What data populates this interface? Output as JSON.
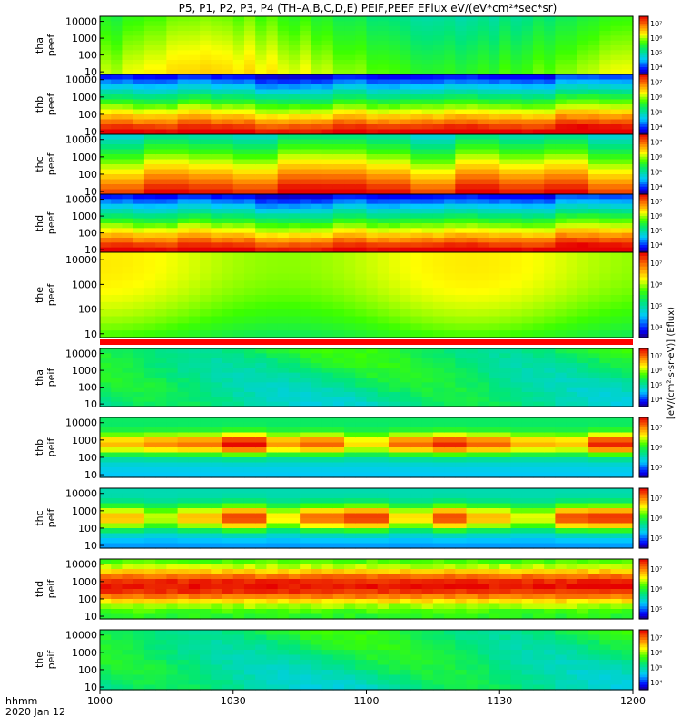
{
  "title": "P5, P1, P2, P3, P4 (TH–A,B,C,D,E) PEIF,PEEF EFlux eV/(eV*cm²*sec*sr)",
  "chart_data": {
    "type": "heatmap",
    "title": "P5, P1, P2, P3, P4 (TH–A,B,C,D,E) PEIF,PEEF EFlux eV/(eV*cm²*sec*sr)",
    "x_ticks": [
      "1000",
      "1030",
      "1100",
      "1130",
      "1200"
    ],
    "x_label_line1": "hhmm",
    "x_label_line2": "2020 Jan 12",
    "x_range_hhmm": [
      "1000",
      "1200"
    ],
    "y_ticks": [
      "10",
      "100",
      "1000",
      "10000"
    ],
    "y_scale": "log",
    "y_range": [
      7,
      20000
    ],
    "colorbar_label": "[eV/(cm²·s·sr·eV)] (Eflux)",
    "colorscale": "rainbow (blue–cyan–green–yellow–red)",
    "panels": [
      {
        "label1": "tha",
        "label2": "peef",
        "cbar_ticks": [
          "10⁴",
          "10⁵",
          "10⁶",
          "10⁷"
        ],
        "pattern": "green-yellow"
      },
      {
        "label1": "thb",
        "label2": "peef",
        "cbar_ticks": [
          "10⁴",
          "10⁵",
          "10⁶",
          "10⁷"
        ],
        "pattern": "red-low-blue-high"
      },
      {
        "label1": "thc",
        "label2": "peef",
        "cbar_ticks": [
          "10⁴",
          "10⁵",
          "10⁶",
          "10⁷"
        ],
        "pattern": "orange-yellow-cyan"
      },
      {
        "label1": "thd",
        "label2": "peef",
        "cbar_ticks": [
          "10⁴",
          "10⁵",
          "10⁶",
          "10⁷"
        ],
        "pattern": "red-low-blue-high"
      },
      {
        "label1": "the",
        "label2": "peef",
        "cbar_ticks": [
          "10⁴",
          "10⁵",
          "10⁶",
          "10⁷"
        ],
        "pattern": "yellow-green"
      },
      {
        "label1": "tha",
        "label2": "peif",
        "cbar_ticks": [
          "10⁴",
          "10⁵",
          "10⁶",
          "10⁷"
        ],
        "pattern": "green-cyan"
      },
      {
        "label1": "thb",
        "label2": "peif",
        "cbar_ticks": [
          "10⁵",
          "10⁶",
          "10⁷"
        ],
        "pattern": "blocks-orange-green"
      },
      {
        "label1": "thc",
        "label2": "peif",
        "cbar_ticks": [
          "10⁵",
          "10⁶",
          "10⁷"
        ],
        "pattern": "blocks-green-yellow"
      },
      {
        "label1": "thd",
        "label2": "peif",
        "cbar_ticks": [
          "10⁵",
          "10⁶",
          "10⁷"
        ],
        "pattern": "red-orange-band"
      },
      {
        "label1": "the",
        "label2": "peif",
        "cbar_ticks": [
          "10⁴",
          "10⁵",
          "10⁶",
          "10⁷"
        ],
        "pattern": "green-cyan"
      }
    ]
  }
}
